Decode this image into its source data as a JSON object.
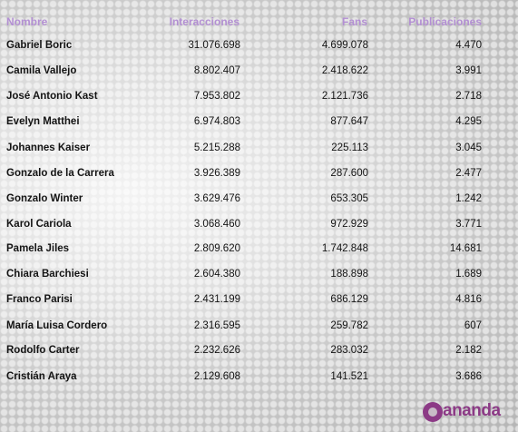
{
  "header": {
    "name": "Nombre",
    "interactions": "Interacciones",
    "fans": "Fans",
    "publications": "Publicaciones"
  },
  "rows": [
    {
      "name": "Gabriel Boric",
      "interactions": "31.076.698",
      "fans": "4.699.078",
      "publications": "4.470"
    },
    {
      "name": "Camila Vallejo",
      "interactions": "8.802.407",
      "fans": "2.418.622",
      "publications": "3.991"
    },
    {
      "name": "José Antonio Kast",
      "interactions": "7.953.802",
      "fans": "2.121.736",
      "publications": "2.718"
    },
    {
      "name": "Evelyn Matthei",
      "interactions": "6.974.803",
      "fans": "877.647",
      "publications": "4.295"
    },
    {
      "name": "Johannes Kaiser",
      "interactions": "5.215.288",
      "fans": "225.113",
      "publications": "3.045"
    },
    {
      "name": "Gonzalo de la Carrera",
      "interactions": "3.926.389",
      "fans": "287.600",
      "publications": "2.477"
    },
    {
      "name": "Gonzalo Winter",
      "interactions": "3.629.476",
      "fans": "653.305",
      "publications": "1.242"
    },
    {
      "name": "Karol Cariola",
      "interactions": "3.068.460",
      "fans": "972.929",
      "publications": "3.771"
    },
    {
      "name": "Pamela Jiles",
      "interactions": "2.809.620",
      "fans": "1.742.848",
      "publications": "14.681"
    },
    {
      "name": "Chiara Barchiesi",
      "interactions": "2.604.380",
      "fans": "188.898",
      "publications": "1.689"
    },
    {
      "name": "Franco Parisi",
      "interactions": "2.431.199",
      "fans": "686.129",
      "publications": "4.816"
    },
    {
      "name": "María Luisa Cordero",
      "interactions": "2.316.595",
      "fans": "259.782",
      "publications": "607"
    },
    {
      "name": "Rodolfo Carter",
      "interactions": "2.232.626",
      "fans": "283.032",
      "publications": "2.182"
    },
    {
      "name": "Cristián Araya",
      "interactions": "2.129.608",
      "fans": "141.521",
      "publications": "3.686"
    }
  ],
  "logo": {
    "text": "ananda",
    "icon": "ananda-logo-icon",
    "color": "#8c3a86"
  },
  "colors": {
    "header": "#b38fd3",
    "text": "#141414"
  }
}
